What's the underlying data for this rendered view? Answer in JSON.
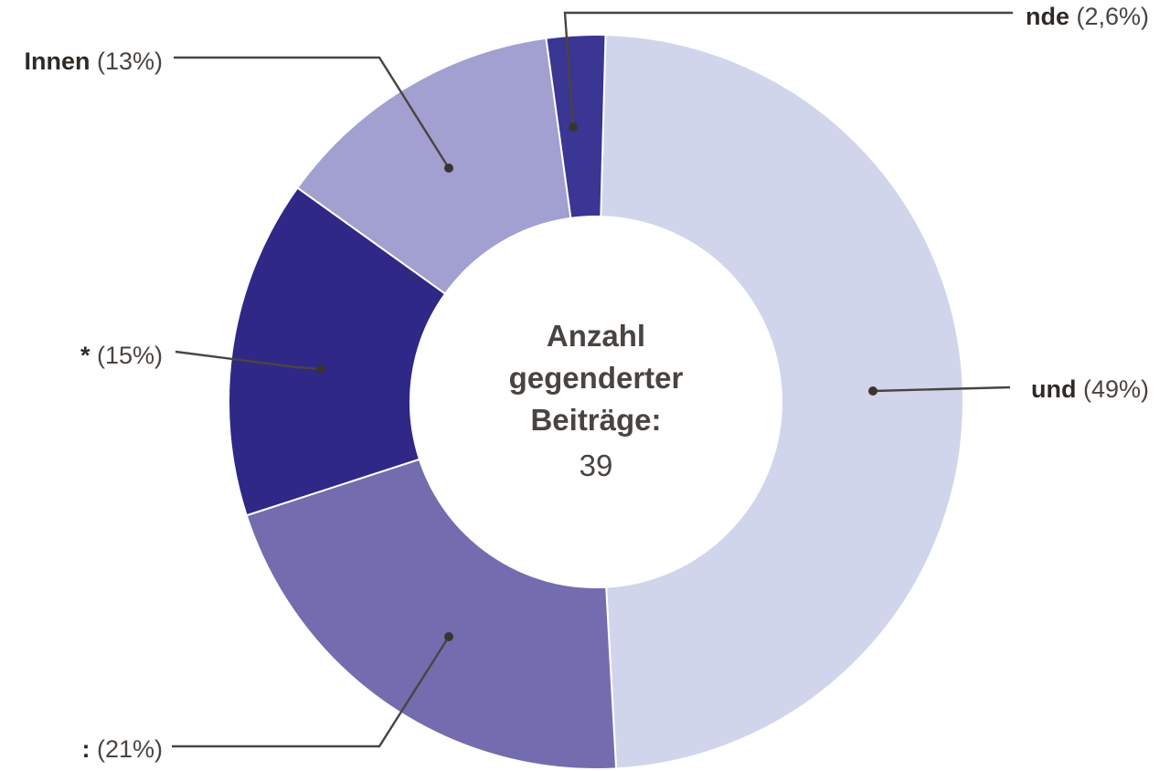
{
  "chart_data": {
    "type": "pie",
    "variant": "donut",
    "slices": [
      {
        "label": "und",
        "value": 49,
        "value_label": "(49%)",
        "color": "#d0d5ec"
      },
      {
        "label": ":",
        "value": 21,
        "value_label": "(21%)",
        "color": "#736daf"
      },
      {
        "label": "*",
        "value": 15,
        "value_label": "(15%)",
        "color": "#2f2887"
      },
      {
        "label": "Innen",
        "value": 13,
        "value_label": "(13%)",
        "color": "#a29fd1"
      },
      {
        "label": "nde",
        "value": 2.6,
        "value_label": "(2,6%)",
        "color": "#3b3594"
      }
    ],
    "center": {
      "title_lines": [
        "Anzahl",
        "gegenderter",
        "Beiträge:"
      ],
      "value": "39"
    }
  }
}
